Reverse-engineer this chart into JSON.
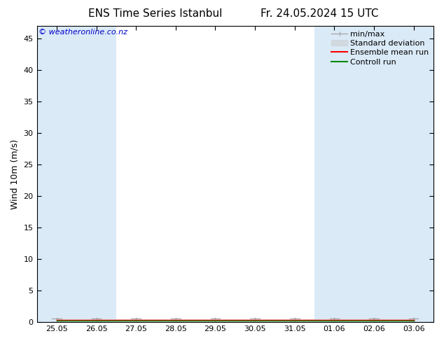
{
  "title_left": "ENS Time Series Istanbul",
  "title_right": "Fr. 24.05.2024 15 UTC",
  "ylabel": "Wind 10m (m/s)",
  "ylim": [
    0,
    47
  ],
  "yticks": [
    0,
    5,
    10,
    15,
    20,
    25,
    30,
    35,
    40,
    45
  ],
  "xlabel": "",
  "watermark": "© weatheronline.co.nz",
  "watermark_color": "#0000cc",
  "background_color": "#ffffff",
  "plot_bg_color": "#ffffff",
  "shaded_band_color": "#daeaf7",
  "xtick_labels": [
    "25.05",
    "26.05",
    "27.05",
    "28.05",
    "29.05",
    "30.05",
    "31.05",
    "01.06",
    "02.06",
    "03.06"
  ],
  "xtick_positions": [
    0,
    1,
    2,
    3,
    4,
    5,
    6,
    7,
    8,
    9
  ],
  "legend_entries": [
    "min/max",
    "Standard deviation",
    "Ensemble mean run",
    "Controll run"
  ],
  "minmax_color": "#aaaaaa",
  "stddev_color": "#cccccc",
  "ensemble_color": "#ff0000",
  "control_color": "#008800",
  "border_color": "#000000",
  "shaded_indices": [
    0,
    1,
    7,
    8,
    9
  ],
  "n_points": 10,
  "ensemble_mean": [
    0.3,
    0.3,
    0.3,
    0.3,
    0.3,
    0.3,
    0.3,
    0.3,
    0.3,
    0.3
  ],
  "control_run": [
    0.2,
    0.2,
    0.2,
    0.2,
    0.2,
    0.2,
    0.2,
    0.2,
    0.2,
    0.2
  ],
  "std_upper": [
    0.5,
    0.5,
    0.5,
    0.5,
    0.5,
    0.5,
    0.5,
    0.5,
    0.5,
    0.5
  ],
  "std_lower": [
    0.1,
    0.1,
    0.1,
    0.1,
    0.1,
    0.1,
    0.1,
    0.1,
    0.1,
    0.1
  ],
  "min_vals": [
    0.05,
    0.05,
    0.05,
    0.05,
    0.05,
    0.05,
    0.05,
    0.05,
    0.05,
    0.05
  ],
  "max_vals": [
    0.6,
    0.6,
    0.6,
    0.6,
    0.6,
    0.6,
    0.6,
    0.6,
    0.6,
    0.6
  ],
  "font_size_title": 11,
  "font_size_label": 9,
  "font_size_tick": 8,
  "font_size_legend": 8,
  "font_size_watermark": 8
}
